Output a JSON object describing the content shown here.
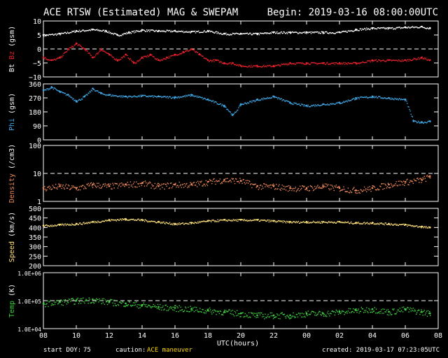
{
  "header": {
    "title": "ACE RTSW (Estimated) MAG & SWEPAM",
    "begin": "Begin: 2019-03-16 08:00:00UTC"
  },
  "footer": {
    "start_doy_label": "start DOY:",
    "start_doy_value": "75",
    "caution_label": "caution:",
    "caution_value": "ACE maneuver",
    "created": "created: 2019-03-17 07:23:05UTC"
  },
  "x_axis": {
    "title": "UTC(hours)",
    "range_hours": [
      0,
      24
    ],
    "tick_labels": [
      "08",
      "10",
      "12",
      "14",
      "16",
      "18",
      "20",
      "22",
      "00",
      "02",
      "04",
      "06",
      "08"
    ]
  },
  "colors": {
    "bt": "#ffffff",
    "bz": "#e8202a",
    "phi": "#3fa9e8",
    "density": "#f08a5a",
    "speed": "#ffe27a",
    "temp": "#3fd23f",
    "caution": "#ffd700"
  },
  "chart_data": [
    {
      "type": "scatter",
      "ylabel_parts": [
        "Bt",
        "Bz",
        "(gsm)"
      ],
      "ylim": [
        -10,
        10
      ],
      "yticks": [
        10,
        5,
        0,
        -5,
        -10
      ],
      "ytick_labels": [
        "10",
        "5",
        "0",
        "−5",
        "−10"
      ],
      "dashed_refs": [
        0
      ],
      "series": [
        {
          "name": "Bt",
          "color_key": "bt",
          "x": [
            0,
            1,
            2,
            3,
            3.8,
            4.5,
            5.2,
            6,
            7,
            8,
            9,
            10,
            11,
            12,
            13,
            14,
            15,
            16,
            17,
            18,
            19,
            20,
            21,
            22,
            23,
            23.5
          ],
          "y": [
            5,
            5.5,
            6.5,
            7,
            6.5,
            5,
            6,
            6.8,
            6.5,
            6.5,
            6.2,
            6.5,
            5.5,
            5.5,
            5.5,
            6,
            6,
            6,
            6,
            6,
            7,
            7.5,
            7.5,
            7.8,
            8,
            7.5
          ]
        },
        {
          "name": "Bz",
          "color_key": "bz",
          "x": [
            0,
            0.5,
            1,
            1.5,
            2,
            2.5,
            3,
            3.5,
            4,
            4.5,
            5,
            5.5,
            6,
            6.5,
            7,
            7.5,
            8,
            8.5,
            9,
            9.5,
            10,
            10.5,
            11,
            11.5,
            12,
            13,
            14,
            15,
            16,
            17,
            18,
            19,
            20,
            21,
            22,
            23,
            23.5
          ],
          "y": [
            -3,
            -4,
            -3,
            0,
            2,
            0,
            -3,
            0,
            -2,
            -4,
            -2,
            -5,
            -3,
            -2,
            -4,
            -3,
            -2,
            -1,
            0,
            -2,
            -4,
            -4,
            -5,
            -5,
            -6,
            -6,
            -6,
            -5,
            -5,
            -5,
            -5,
            -5,
            -4,
            -4,
            -4,
            -3,
            -4
          ]
        }
      ]
    },
    {
      "type": "scatter",
      "ylabel_parts": [
        "Phi",
        "(gsm)"
      ],
      "ylim": [
        0,
        360
      ],
      "yticks": [
        360,
        270,
        180,
        90,
        0
      ],
      "ytick_labels": [
        "360",
        "270",
        "180",
        "90",
        "0"
      ],
      "dashed_refs": [],
      "series": [
        {
          "name": "Phi",
          "color_key": "phi",
          "x": [
            0,
            0.5,
            1,
            1.5,
            2,
            2.5,
            3,
            3.5,
            4,
            5,
            6,
            7,
            8,
            9,
            10,
            11,
            11.5,
            12,
            13,
            14,
            15,
            16,
            17,
            18,
            19,
            20,
            21,
            22,
            22.5,
            23,
            23.5
          ],
          "y": [
            320,
            340,
            310,
            290,
            250,
            280,
            330,
            300,
            290,
            280,
            285,
            280,
            275,
            290,
            260,
            220,
            160,
            230,
            260,
            280,
            240,
            220,
            230,
            240,
            270,
            280,
            270,
            260,
            120,
            115,
            120
          ]
        }
      ]
    },
    {
      "type": "scatter",
      "ylabel_parts": [
        "Density",
        "(/cm3)"
      ],
      "ylog": true,
      "ylim": [
        1,
        100
      ],
      "yticks": [
        100,
        10,
        1
      ],
      "ytick_labels": [
        "100",
        "10",
        "1"
      ],
      "dashed_refs": [
        10
      ],
      "series": [
        {
          "name": "Density",
          "color_key": "density",
          "x": [
            0,
            1,
            2,
            3,
            4,
            5,
            6,
            7,
            8,
            9,
            10,
            11,
            12,
            13,
            14,
            15,
            16,
            17,
            18,
            19,
            20,
            21,
            22,
            23,
            23.5
          ],
          "y": [
            3,
            3.5,
            3,
            4,
            3.5,
            4,
            4.5,
            3.5,
            4,
            4,
            5,
            6,
            5.5,
            3.5,
            3.5,
            3,
            3,
            3.5,
            3,
            2.5,
            3,
            4,
            5,
            6,
            8
          ]
        }
      ]
    },
    {
      "type": "scatter",
      "ylabel_parts": [
        "Speed",
        "(km/s)"
      ],
      "ylim": [
        200,
        500
      ],
      "yticks": [
        500,
        450,
        400,
        350,
        300,
        250,
        200
      ],
      "ytick_labels": [
        "500",
        "450",
        "400",
        "350",
        "300",
        "250",
        "200"
      ],
      "dashed_refs": [],
      "series": [
        {
          "name": "Speed",
          "color_key": "speed",
          "x": [
            0,
            1,
            2,
            3,
            4,
            5,
            6,
            7,
            8,
            9,
            10,
            11,
            12,
            13,
            14,
            15,
            16,
            17,
            18,
            19,
            20,
            21,
            22,
            23,
            23.5
          ],
          "y": [
            410,
            415,
            420,
            430,
            440,
            445,
            440,
            430,
            420,
            425,
            435,
            440,
            440,
            440,
            435,
            430,
            430,
            430,
            430,
            425,
            425,
            420,
            415,
            405,
            400
          ]
        }
      ]
    },
    {
      "type": "scatter",
      "ylabel_parts": [
        "Temp",
        "(K)"
      ],
      "ylog": true,
      "ylim": [
        10000,
        1000000
      ],
      "yticks": [
        1000000,
        100000,
        10000
      ],
      "ytick_labels": [
        "1.0E+06",
        "1.0E+05",
        "1.0E+04"
      ],
      "dashed_refs": [
        100000
      ],
      "series": [
        {
          "name": "Temp",
          "color_key": "temp",
          "x": [
            0,
            1,
            2,
            3,
            4,
            5,
            6,
            7,
            8,
            9,
            10,
            11,
            12,
            13,
            14,
            15,
            16,
            17,
            18,
            19,
            20,
            21,
            22,
            23,
            23.5
          ],
          "y": [
            80000,
            90000,
            100000,
            110000,
            90000,
            80000,
            70000,
            60000,
            55000,
            50000,
            45000,
            40000,
            35000,
            30000,
            30000,
            30000,
            35000,
            35000,
            40000,
            45000,
            50000,
            40000,
            50000,
            40000,
            35000
          ]
        }
      ]
    }
  ]
}
